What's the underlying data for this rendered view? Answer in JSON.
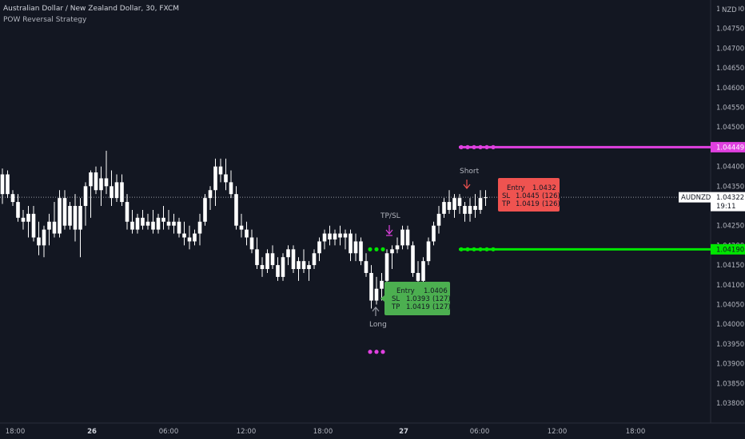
{
  "header": {
    "title": "Australian Dollar / New Zealand Dollar, 30, FXCM",
    "subtitle": "POW Reversal Strategy"
  },
  "colors": {
    "background": "#131722",
    "candle_up": "#ffffff",
    "candle_down": "#ffffff",
    "magenta": "#e040e0",
    "green": "#00e600",
    "long_box": "#4caf50",
    "short_box": "#ef5350",
    "price_label": "#ffffff"
  },
  "chart_data": {
    "type": "candlestick",
    "symbol": "AUDNZD",
    "currency": "NZD",
    "y_axis": {
      "min": 1.0375,
      "max": 1.0482,
      "ticks": [
        "1.03800",
        "1.03850",
        "1.03900",
        "1.03950",
        "1.04000",
        "1.04050",
        "1.04100",
        "1.04150",
        "1.04200",
        "1.04250",
        "1.04300",
        "1.04350",
        "1.04400",
        "1.04450",
        "1.04500",
        "1.04550",
        "1.04600",
        "1.04650",
        "1.04700",
        "1.04750",
        "1.04800"
      ]
    },
    "x_axis": {
      "ticks": [
        "18:00",
        "26",
        "06:00",
        "12:00",
        "18:00",
        "27",
        "06:00",
        "12:00",
        "18:00"
      ]
    },
    "candles": [
      {
        "o": 1.0433,
        "h": 1.04395,
        "l": 1.04305,
        "c": 1.0438
      },
      {
        "o": 1.0438,
        "h": 1.0439,
        "l": 1.0432,
        "c": 1.0433
      },
      {
        "o": 1.0433,
        "h": 1.0434,
        "l": 1.043,
        "c": 1.0431
      },
      {
        "o": 1.0431,
        "h": 1.0433,
        "l": 1.0426,
        "c": 1.0427
      },
      {
        "o": 1.0427,
        "h": 1.0429,
        "l": 1.0424,
        "c": 1.0426
      },
      {
        "o": 1.0426,
        "h": 1.043,
        "l": 1.0422,
        "c": 1.0428
      },
      {
        "o": 1.0428,
        "h": 1.043,
        "l": 1.0421,
        "c": 1.0422
      },
      {
        "o": 1.0422,
        "h": 1.0426,
        "l": 1.04175,
        "c": 1.042
      },
      {
        "o": 1.042,
        "h": 1.0425,
        "l": 1.0417,
        "c": 1.0424
      },
      {
        "o": 1.0424,
        "h": 1.0428,
        "l": 1.042,
        "c": 1.0426
      },
      {
        "o": 1.0426,
        "h": 1.0431,
        "l": 1.0422,
        "c": 1.0423
      },
      {
        "o": 1.0423,
        "h": 1.0434,
        "l": 1.0422,
        "c": 1.0432
      },
      {
        "o": 1.0432,
        "h": 1.0434,
        "l": 1.0424,
        "c": 1.0425
      },
      {
        "o": 1.0425,
        "h": 1.0431,
        "l": 1.0424,
        "c": 1.043
      },
      {
        "o": 1.043,
        "h": 1.0433,
        "l": 1.0421,
        "c": 1.0424
      },
      {
        "o": 1.0424,
        "h": 1.0432,
        "l": 1.0417,
        "c": 1.043
      },
      {
        "o": 1.043,
        "h": 1.0436,
        "l": 1.0425,
        "c": 1.0435
      },
      {
        "o": 1.0435,
        "h": 1.0439,
        "l": 1.0427,
        "c": 1.04385
      },
      {
        "o": 1.04385,
        "h": 1.044,
        "l": 1.0433,
        "c": 1.0434
      },
      {
        "o": 1.0434,
        "h": 1.044,
        "l": 1.043,
        "c": 1.0437
      },
      {
        "o": 1.0437,
        "h": 1.0444,
        "l": 1.0433,
        "c": 1.0435
      },
      {
        "o": 1.0435,
        "h": 1.0439,
        "l": 1.043,
        "c": 1.0432
      },
      {
        "o": 1.0432,
        "h": 1.0438,
        "l": 1.0431,
        "c": 1.0436
      },
      {
        "o": 1.0436,
        "h": 1.0438,
        "l": 1.043,
        "c": 1.0431
      },
      {
        "o": 1.0431,
        "h": 1.0433,
        "l": 1.0424,
        "c": 1.0426
      },
      {
        "o": 1.0426,
        "h": 1.0429,
        "l": 1.0423,
        "c": 1.0424
      },
      {
        "o": 1.0424,
        "h": 1.0428,
        "l": 1.0423,
        "c": 1.0427
      },
      {
        "o": 1.0427,
        "h": 1.0429,
        "l": 1.0424,
        "c": 1.0425
      },
      {
        "o": 1.0425,
        "h": 1.0428,
        "l": 1.0424,
        "c": 1.0426
      },
      {
        "o": 1.0426,
        "h": 1.0429,
        "l": 1.0423,
        "c": 1.0424
      },
      {
        "o": 1.0424,
        "h": 1.0428,
        "l": 1.0423,
        "c": 1.0427
      },
      {
        "o": 1.0427,
        "h": 1.043,
        "l": 1.0424,
        "c": 1.0426
      },
      {
        "o": 1.0426,
        "h": 1.0429,
        "l": 1.0424,
        "c": 1.0425
      },
      {
        "o": 1.0425,
        "h": 1.0428,
        "l": 1.0423,
        "c": 1.0426
      },
      {
        "o": 1.0426,
        "h": 1.0427,
        "l": 1.0422,
        "c": 1.0423
      },
      {
        "o": 1.0423,
        "h": 1.0426,
        "l": 1.042,
        "c": 1.0422
      },
      {
        "o": 1.0422,
        "h": 1.0425,
        "l": 1.0419,
        "c": 1.0421
      },
      {
        "o": 1.0421,
        "h": 1.0424,
        "l": 1.042,
        "c": 1.0423
      },
      {
        "o": 1.0423,
        "h": 1.0428,
        "l": 1.042,
        "c": 1.0426
      },
      {
        "o": 1.0426,
        "h": 1.0433,
        "l": 1.0425,
        "c": 1.0432
      },
      {
        "o": 1.0432,
        "h": 1.0435,
        "l": 1.0429,
        "c": 1.0434
      },
      {
        "o": 1.0434,
        "h": 1.0442,
        "l": 1.043,
        "c": 1.044
      },
      {
        "o": 1.044,
        "h": 1.0442,
        "l": 1.0436,
        "c": 1.0438
      },
      {
        "o": 1.0438,
        "h": 1.0442,
        "l": 1.0434,
        "c": 1.0436
      },
      {
        "o": 1.0436,
        "h": 1.0439,
        "l": 1.0432,
        "c": 1.0433
      },
      {
        "o": 1.0433,
        "h": 1.0435,
        "l": 1.0424,
        "c": 1.0425
      },
      {
        "o": 1.0425,
        "h": 1.0428,
        "l": 1.0422,
        "c": 1.0424
      },
      {
        "o": 1.0424,
        "h": 1.0426,
        "l": 1.042,
        "c": 1.0422
      },
      {
        "o": 1.0422,
        "h": 1.0424,
        "l": 1.0418,
        "c": 1.0419
      },
      {
        "o": 1.0419,
        "h": 1.0422,
        "l": 1.0414,
        "c": 1.0415
      },
      {
        "o": 1.0415,
        "h": 1.0417,
        "l": 1.0412,
        "c": 1.0414
      },
      {
        "o": 1.0414,
        "h": 1.0419,
        "l": 1.0413,
        "c": 1.0418
      },
      {
        "o": 1.0418,
        "h": 1.042,
        "l": 1.0414,
        "c": 1.0415
      },
      {
        "o": 1.0415,
        "h": 1.0417,
        "l": 1.0411,
        "c": 1.0412
      },
      {
        "o": 1.0412,
        "h": 1.0418,
        "l": 1.0411,
        "c": 1.0417
      },
      {
        "o": 1.0417,
        "h": 1.042,
        "l": 1.0415,
        "c": 1.0419
      },
      {
        "o": 1.0419,
        "h": 1.042,
        "l": 1.0413,
        "c": 1.0414
      },
      {
        "o": 1.0414,
        "h": 1.0417,
        "l": 1.0411,
        "c": 1.0416
      },
      {
        "o": 1.0416,
        "h": 1.0419,
        "l": 1.0413,
        "c": 1.0414
      },
      {
        "o": 1.0414,
        "h": 1.0416,
        "l": 1.0411,
        "c": 1.0415
      },
      {
        "o": 1.0415,
        "h": 1.0419,
        "l": 1.0414,
        "c": 1.0418
      },
      {
        "o": 1.0418,
        "h": 1.0422,
        "l": 1.0416,
        "c": 1.0421
      },
      {
        "o": 1.0421,
        "h": 1.0424,
        "l": 1.0419,
        "c": 1.0423
      },
      {
        "o": 1.0423,
        "h": 1.0425,
        "l": 1.042,
        "c": 1.04215
      },
      {
        "o": 1.04215,
        "h": 1.0424,
        "l": 1.042,
        "c": 1.0423
      },
      {
        "o": 1.0423,
        "h": 1.0425,
        "l": 1.042,
        "c": 1.0422
      },
      {
        "o": 1.0422,
        "h": 1.0424,
        "l": 1.0419,
        "c": 1.0423
      },
      {
        "o": 1.0423,
        "h": 1.0424,
        "l": 1.0416,
        "c": 1.0418
      },
      {
        "o": 1.0418,
        "h": 1.0423,
        "l": 1.0416,
        "c": 1.0421
      },
      {
        "o": 1.0421,
        "h": 1.0422,
        "l": 1.0415,
        "c": 1.0416
      },
      {
        "o": 1.0416,
        "h": 1.0418,
        "l": 1.0412,
        "c": 1.0413
      },
      {
        "o": 1.0413,
        "h": 1.0415,
        "l": 1.0404,
        "c": 1.0406
      },
      {
        "o": 1.0406,
        "h": 1.0412,
        "l": 1.0405,
        "c": 1.0409
      },
      {
        "o": 1.0409,
        "h": 1.0413,
        "l": 1.0406,
        "c": 1.0411
      },
      {
        "o": 1.0411,
        "h": 1.0419,
        "l": 1.041,
        "c": 1.0418
      },
      {
        "o": 1.0418,
        "h": 1.042,
        "l": 1.0414,
        "c": 1.0419
      },
      {
        "o": 1.0419,
        "h": 1.0422,
        "l": 1.0418,
        "c": 1.042
      },
      {
        "o": 1.042,
        "h": 1.0425,
        "l": 1.0419,
        "c": 1.0424
      },
      {
        "o": 1.0424,
        "h": 1.0425,
        "l": 1.0419,
        "c": 1.042
      },
      {
        "o": 1.042,
        "h": 1.0421,
        "l": 1.0412,
        "c": 1.0413
      },
      {
        "o": 1.0413,
        "h": 1.0416,
        "l": 1.041,
        "c": 1.0411
      },
      {
        "o": 1.0411,
        "h": 1.0417,
        "l": 1.041,
        "c": 1.0416
      },
      {
        "o": 1.0416,
        "h": 1.0422,
        "l": 1.0415,
        "c": 1.0421
      },
      {
        "o": 1.0421,
        "h": 1.0426,
        "l": 1.042,
        "c": 1.0425
      },
      {
        "o": 1.0425,
        "h": 1.043,
        "l": 1.0423,
        "c": 1.0428
      },
      {
        "o": 1.0428,
        "h": 1.0432,
        "l": 1.0427,
        "c": 1.0431
      },
      {
        "o": 1.0431,
        "h": 1.0434,
        "l": 1.0428,
        "c": 1.0429
      },
      {
        "o": 1.0429,
        "h": 1.0433,
        "l": 1.0427,
        "c": 1.0432
      },
      {
        "o": 1.0432,
        "h": 1.0433,
        "l": 1.0428,
        "c": 1.043
      },
      {
        "o": 1.043,
        "h": 1.0431,
        "l": 1.0426,
        "c": 1.0428
      },
      {
        "o": 1.0428,
        "h": 1.0432,
        "l": 1.0426,
        "c": 1.043
      },
      {
        "o": 1.043,
        "h": 1.0433,
        "l": 1.0427,
        "c": 1.0429
      },
      {
        "o": 1.0429,
        "h": 1.0434,
        "l": 1.0428,
        "c": 1.0432
      },
      {
        "o": 1.0432,
        "h": 1.0434,
        "l": 1.043,
        "c": 1.04322
      }
    ],
    "levels": [
      {
        "name": "short_stop_level",
        "value": 1.04449,
        "label": "1.04449",
        "color": "#e040e0"
      },
      {
        "name": "long_target_level",
        "value": 1.0419,
        "label": "1.04190",
        "color": "#00e600"
      }
    ],
    "current_price": {
      "symbol": "AUDNZD",
      "value": 1.04322,
      "label": "1.04322",
      "countdown": "19:11"
    },
    "annotations": {
      "long": {
        "label": "Long",
        "entry_label": "Entry",
        "entry": "1.0406",
        "sl_label": "SL",
        "sl": "1.0393",
        "sl_pips": "(127)",
        "tp_label": "TP",
        "tp": "1.0419",
        "tp_pips": "(127)"
      },
      "short": {
        "label": "Short",
        "entry_label": "Entry",
        "entry": "1.0432",
        "sl_label": "SL",
        "sl": "1.0445",
        "sl_pips": "(126)",
        "tp_label": "TP",
        "tp": "1.0419",
        "tp_pips": "(126)"
      },
      "tpsl": {
        "label": "TP/SL"
      }
    }
  }
}
